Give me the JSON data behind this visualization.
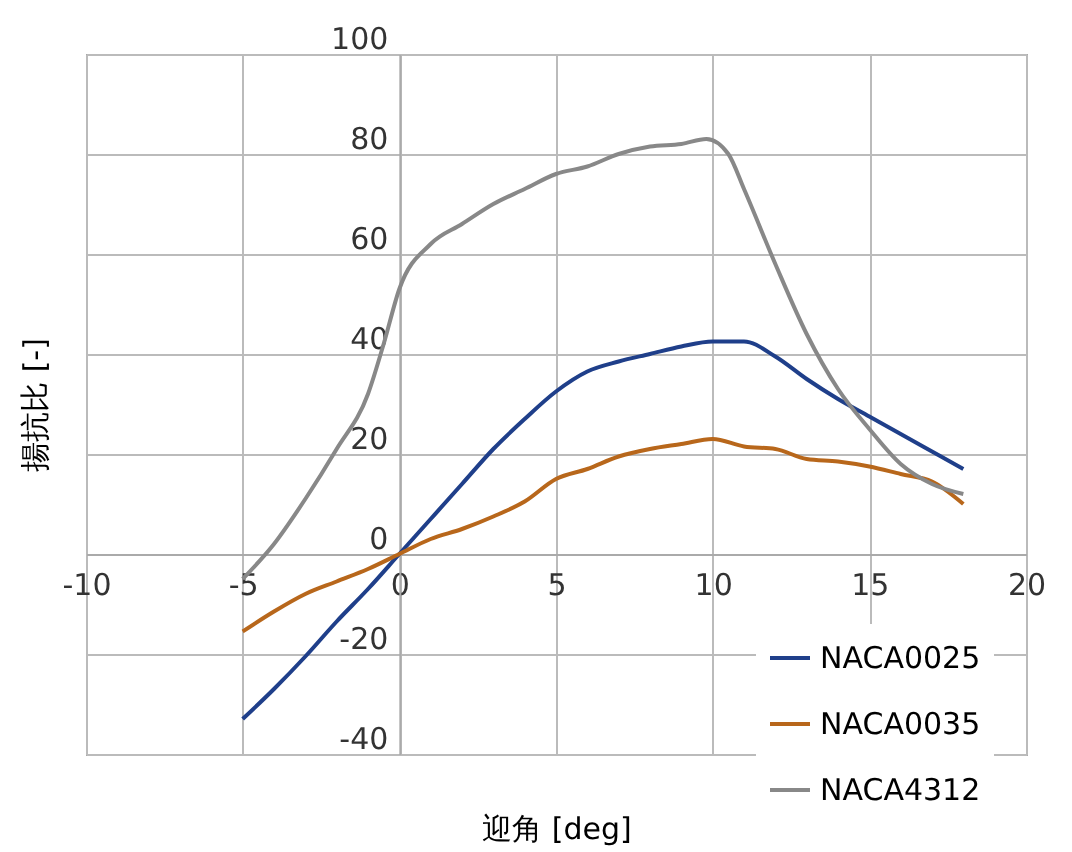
{
  "chart_data": {
    "type": "line",
    "xlabel": "迎角 [deg]",
    "ylabel": "揚抗比 [-]",
    "xlim": [
      -10,
      20
    ],
    "xticks": [
      -10,
      -5,
      0,
      5,
      10,
      15,
      20
    ],
    "ylim": [
      -40,
      100
    ],
    "yticks": [
      -40,
      -20,
      0,
      20,
      40,
      60,
      80,
      100
    ],
    "grid": true,
    "legend": "bottom right",
    "line_style": "solid",
    "marker": "none",
    "series": [
      {
        "name": "NACA0025",
        "color": "#1f3f8a",
        "x": [
          -5,
          -4,
          -3,
          -2,
          -1,
          0,
          1,
          2,
          3,
          4,
          5,
          6,
          7,
          8,
          9,
          10,
          11,
          12,
          13,
          14,
          15,
          16,
          17,
          18
        ],
        "values": [
          -33,
          -27,
          -20.5,
          -13.5,
          -7,
          0,
          7,
          14,
          21,
          27,
          32.5,
          36.5,
          38.5,
          40,
          41.5,
          42.5,
          42.5,
          39.5,
          35,
          31,
          27.5,
          24,
          20.5,
          17
        ]
      },
      {
        "name": "NACA0035",
        "color": "#b8671b",
        "x": [
          -5,
          -4,
          -3,
          -2,
          -1,
          0,
          1,
          2,
          3,
          4,
          5,
          6,
          7,
          8,
          9,
          10,
          11,
          12,
          13,
          14,
          15,
          16,
          17,
          18
        ],
        "values": [
          -15.5,
          -11.5,
          -8,
          -5.5,
          -3,
          0,
          3,
          5,
          7.5,
          10.5,
          15,
          17,
          19.5,
          21,
          22,
          23,
          21.5,
          21,
          19,
          18.5,
          17.5,
          16,
          14.5,
          10
        ]
      },
      {
        "name": "NACA4312",
        "color": "#888888",
        "x": [
          -5,
          -4,
          -3,
          -2,
          -1,
          -0.5,
          0,
          1,
          2,
          3,
          4,
          5,
          6,
          7,
          8,
          9,
          9.8,
          10.5,
          11,
          12,
          13,
          14,
          15,
          16,
          17,
          18
        ],
        "values": [
          -5,
          2,
          11,
          21,
          32,
          42,
          53,
          62,
          66,
          70,
          73,
          76,
          77.5,
          80,
          81.5,
          82,
          83,
          80,
          73,
          58,
          44,
          33,
          25,
          18,
          14,
          12
        ]
      }
    ]
  }
}
